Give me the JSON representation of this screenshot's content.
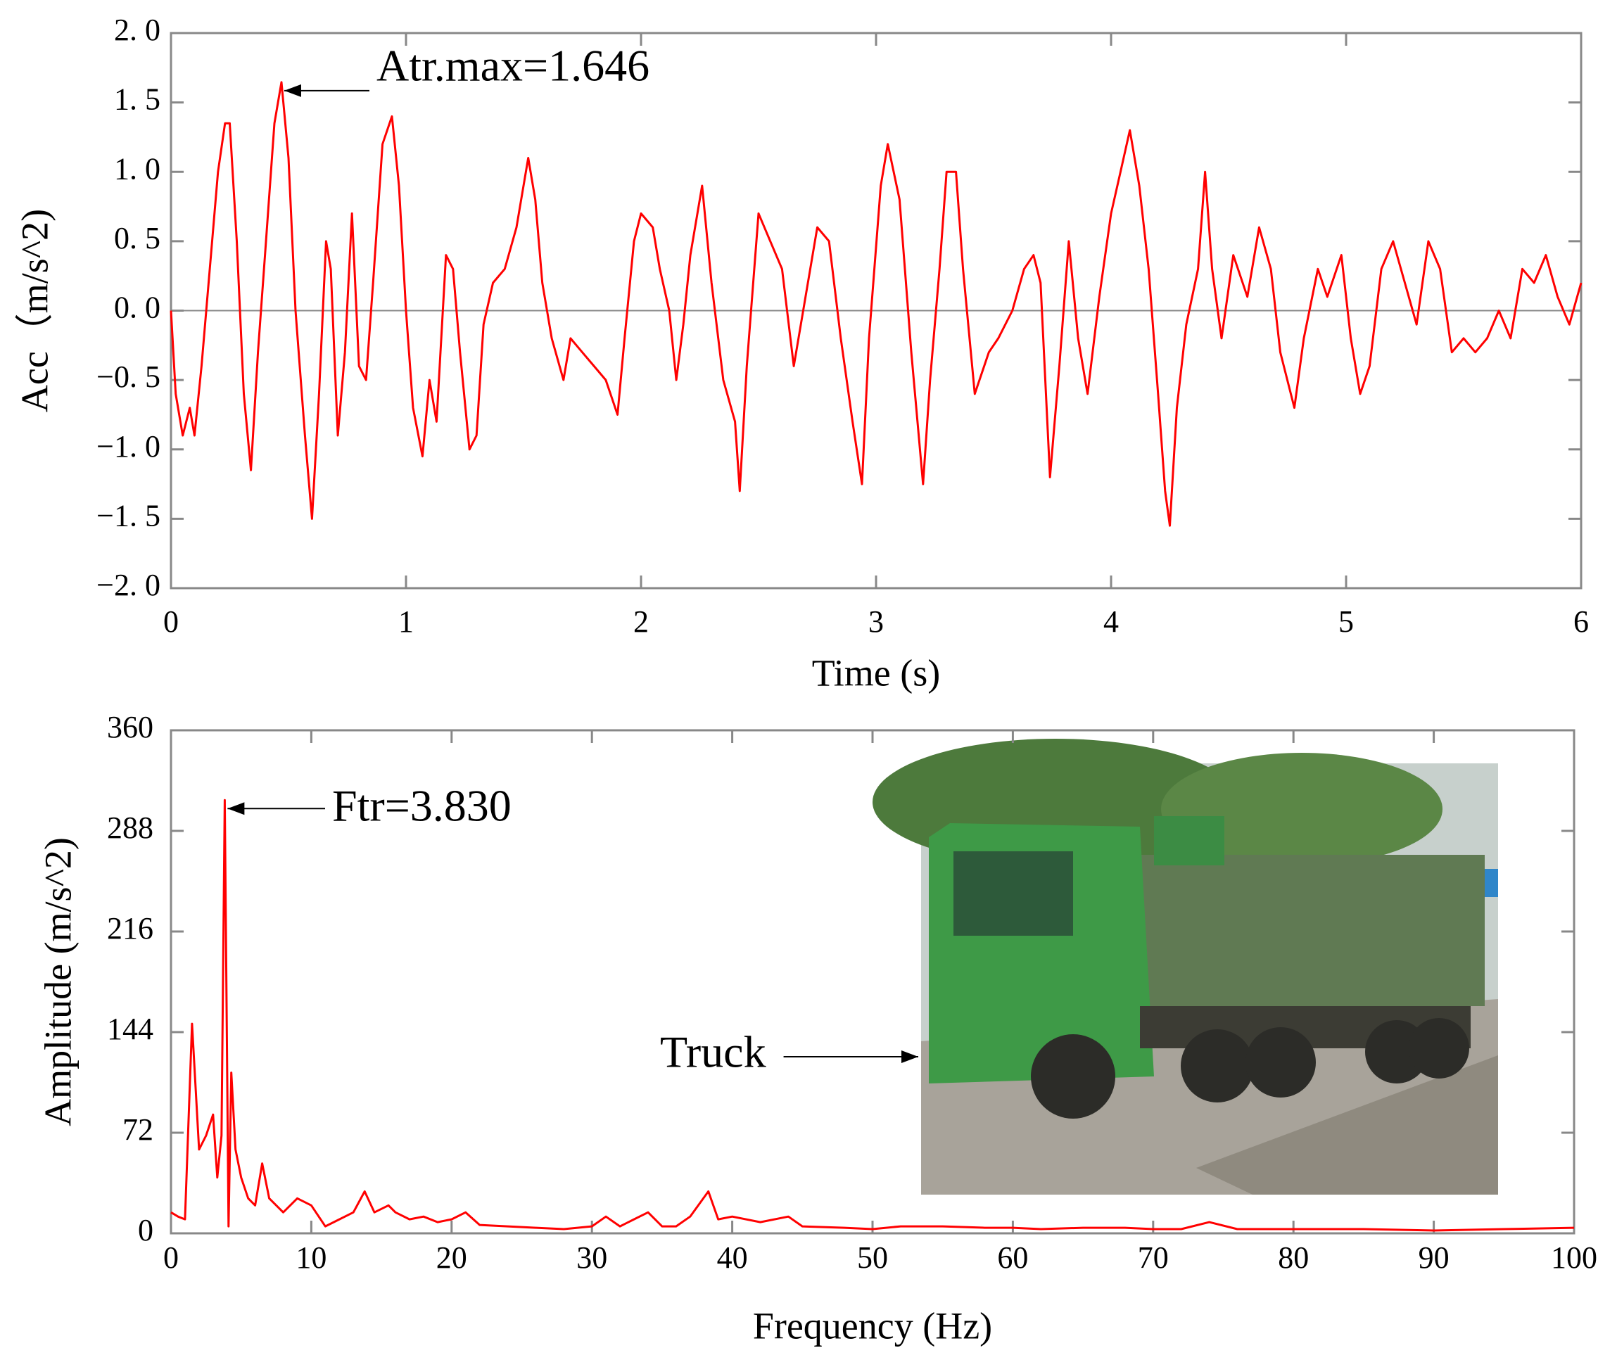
{
  "chart_data": [
    {
      "type": "line",
      "xlabel": "Time (s)",
      "ylabel": "Acc（m/s^2)",
      "color": "#ff0000",
      "zero_line": true,
      "xlim": [
        0,
        6
      ],
      "xticks": [
        0,
        1,
        2,
        3,
        4,
        5,
        6
      ],
      "ylim": [
        -2,
        2
      ],
      "yticks": [
        {
          "value": -2,
          "label": "−2. 0"
        },
        {
          "value": -1.5,
          "label": "−1. 5"
        },
        {
          "value": -1,
          "label": "−1. 0"
        },
        {
          "value": -0.5,
          "label": "−0. 5"
        },
        {
          "value": 0,
          "label": "0. 0"
        },
        {
          "value": 0.5,
          "label": "0. 5"
        },
        {
          "value": 1,
          "label": "1. 0"
        },
        {
          "value": 1.5,
          "label": "1. 5"
        },
        {
          "value": 2,
          "label": "2. 0"
        }
      ],
      "annotations": [
        {
          "text": "Atr.max=1.646"
        }
      ],
      "x": [
        0,
        0.02,
        0.05,
        0.08,
        0.1,
        0.13,
        0.17,
        0.2,
        0.23,
        0.25,
        0.28,
        0.31,
        0.34,
        0.37,
        0.4,
        0.44,
        0.47,
        0.5,
        0.53,
        0.57,
        0.6,
        0.63,
        0.66,
        0.68,
        0.71,
        0.74,
        0.77,
        0.8,
        0.83,
        0.86,
        0.9,
        0.94,
        0.97,
        1.0,
        1.03,
        1.07,
        1.1,
        1.13,
        1.17,
        1.2,
        1.23,
        1.27,
        1.3,
        1.33,
        1.37,
        1.42,
        1.47,
        1.52,
        1.55,
        1.58,
        1.62,
        1.67,
        1.7,
        1.75,
        1.8,
        1.85,
        1.9,
        1.93,
        1.97,
        2.0,
        2.05,
        2.08,
        2.12,
        2.15,
        2.18,
        2.21,
        2.26,
        2.3,
        2.35,
        2.4,
        2.42,
        2.45,
        2.5,
        2.55,
        2.6,
        2.65,
        2.7,
        2.75,
        2.8,
        2.85,
        2.9,
        2.94,
        2.97,
        3.02,
        3.05,
        3.1,
        3.15,
        3.2,
        3.23,
        3.27,
        3.3,
        3.34,
        3.37,
        3.42,
        3.48,
        3.52,
        3.58,
        3.63,
        3.67,
        3.7,
        3.74,
        3.78,
        3.82,
        3.86,
        3.9,
        3.95,
        4.0,
        4.04,
        4.08,
        4.12,
        4.16,
        4.2,
        4.23,
        4.25,
        4.28,
        4.32,
        4.37,
        4.4,
        4.43,
        4.47,
        4.52,
        4.58,
        4.63,
        4.68,
        4.72,
        4.78,
        4.82,
        4.88,
        4.92,
        4.98,
        5.02,
        5.06,
        5.1,
        5.15,
        5.2,
        5.25,
        5.3,
        5.35,
        5.4,
        5.45,
        5.5,
        5.55,
        5.6,
        5.65,
        5.7,
        5.75,
        5.8,
        5.85,
        5.9,
        5.95,
        6.0
      ],
      "values": [
        0,
        -0.6,
        -0.9,
        -0.7,
        -0.9,
        -0.4,
        0.4,
        1.0,
        1.35,
        1.35,
        0.5,
        -0.6,
        -1.15,
        -0.3,
        0.4,
        1.35,
        1.646,
        1.1,
        0.0,
        -0.9,
        -1.5,
        -0.6,
        0.5,
        0.3,
        -0.9,
        -0.3,
        0.7,
        -0.4,
        -0.5,
        0.2,
        1.2,
        1.4,
        0.9,
        0.0,
        -0.7,
        -1.05,
        -0.5,
        -0.8,
        0.4,
        0.3,
        -0.3,
        -1.0,
        -0.9,
        -0.1,
        0.2,
        0.3,
        0.6,
        1.1,
        0.8,
        0.2,
        -0.2,
        -0.5,
        -0.2,
        -0.3,
        -0.4,
        -0.5,
        -0.75,
        -0.2,
        0.5,
        0.7,
        0.6,
        0.3,
        0.0,
        -0.5,
        -0.1,
        0.4,
        0.9,
        0.2,
        -0.5,
        -0.8,
        -1.3,
        -0.4,
        0.7,
        0.5,
        0.3,
        -0.4,
        0.1,
        0.6,
        0.5,
        -0.2,
        -0.8,
        -1.25,
        -0.2,
        0.9,
        1.2,
        0.8,
        -0.3,
        -1.25,
        -0.5,
        0.3,
        1.0,
        1.0,
        0.3,
        -0.6,
        -0.3,
        -0.2,
        0.0,
        0.3,
        0.4,
        0.2,
        -1.2,
        -0.4,
        0.5,
        -0.2,
        -0.6,
        0.1,
        0.7,
        1.0,
        1.3,
        0.9,
        0.3,
        -0.6,
        -1.3,
        -1.55,
        -0.7,
        -0.1,
        0.3,
        1.0,
        0.3,
        -0.2,
        0.4,
        0.1,
        0.6,
        0.3,
        -0.3,
        -0.7,
        -0.2,
        0.3,
        0.1,
        0.4,
        -0.2,
        -0.6,
        -0.4,
        0.3,
        0.5,
        0.2,
        -0.1,
        0.5,
        0.3,
        -0.3,
        -0.2,
        -0.3,
        -0.2,
        0.0,
        -0.2,
        0.3,
        0.2,
        0.4,
        0.1,
        -0.1,
        0.2
      ]
    },
    {
      "type": "line",
      "xlabel": "Frequency (Hz)",
      "ylabel": "Amplitude (m/s^2)",
      "color": "#ff0000",
      "zero_line": false,
      "xlim": [
        0,
        100
      ],
      "xticks": [
        0,
        10,
        20,
        30,
        40,
        50,
        60,
        70,
        80,
        90,
        100
      ],
      "ylim": [
        0,
        360
      ],
      "yticks": [
        0,
        72,
        144,
        216,
        288,
        360
      ],
      "annotations": [
        {
          "text": "Ftr=3.830"
        }
      ],
      "inset_label": "Truck",
      "x": [
        0,
        0.5,
        1,
        1.5,
        2,
        2.5,
        3,
        3.3,
        3.6,
        3.83,
        4.1,
        4.3,
        4.6,
        5,
        5.5,
        6,
        6.5,
        7,
        8,
        9,
        10,
        11,
        12,
        13,
        13.8,
        14.5,
        15.5,
        16,
        17,
        18,
        19,
        20,
        21,
        22,
        24,
        26,
        28,
        30,
        31,
        32,
        33,
        34,
        35,
        36,
        37,
        38.3,
        39,
        40,
        42,
        44,
        45,
        48,
        50,
        52,
        55,
        58,
        60,
        62,
        65,
        68,
        70,
        72,
        74,
        76,
        80,
        85,
        90,
        95,
        100
      ],
      "values": [
        15,
        12,
        10,
        150,
        60,
        70,
        85,
        40,
        70,
        310,
        5,
        115,
        60,
        40,
        25,
        20,
        50,
        25,
        15,
        25,
        20,
        5,
        10,
        15,
        30,
        15,
        20,
        15,
        10,
        12,
        8,
        10,
        15,
        6,
        5,
        4,
        3,
        5,
        12,
        5,
        10,
        15,
        5,
        5,
        12,
        30,
        10,
        12,
        8,
        12,
        5,
        4,
        3,
        5,
        5,
        4,
        4,
        3,
        4,
        4,
        3,
        3,
        8,
        3,
        3,
        3,
        2,
        3,
        4
      ]
    }
  ]
}
